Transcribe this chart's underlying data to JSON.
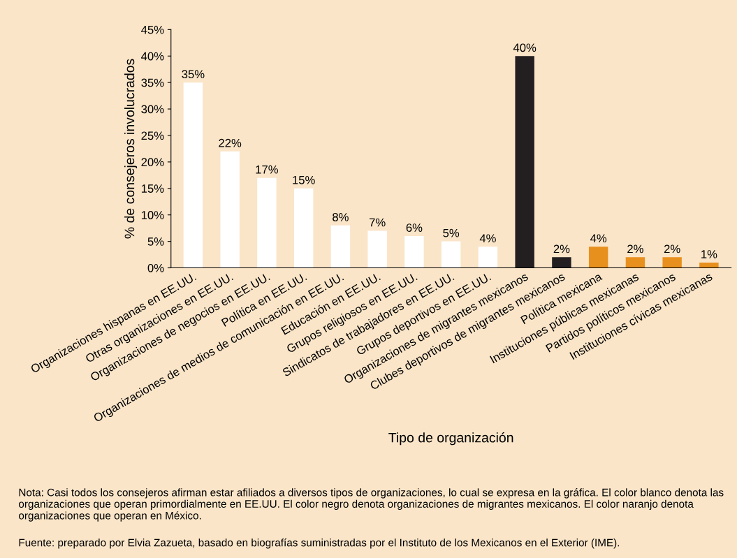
{
  "chart_data": {
    "type": "bar",
    "xlabel": "Tipo de organización",
    "ylabel": "% de consejeros involucrados",
    "categories": [
      "Organizaciones hispanas en EE.UU.",
      "Otras organizaciones en EE.UU.",
      "Organizaciones de negocios en EE.UU.",
      "Política en EE.UU.",
      "Organizaciones de medios de comunicación en EE.UU.",
      "Educación en EE.UU.",
      "Grupos religiosos en EE.UU.",
      "Sindicatos de trabajadores en EE.UU.",
      "Grupos deportivos en EE.UU.",
      "Organizaciones de migrantes mexicanos",
      "Clubes deportivos de migrantes mexicanos",
      "Política mexicana",
      "Instituciones públicas mexicanas",
      "Partidos políticos mexicanos",
      "Instituciones cívicas mexicanas"
    ],
    "values": [
      35,
      22,
      17,
      15,
      8,
      7,
      6,
      5,
      4,
      40,
      2,
      4,
      2,
      2,
      1
    ],
    "colors": [
      "#ffffff",
      "#ffffff",
      "#ffffff",
      "#ffffff",
      "#ffffff",
      "#ffffff",
      "#ffffff",
      "#ffffff",
      "#ffffff",
      "#231f20",
      "#231f20",
      "#e8901e",
      "#e8901e",
      "#e8901e",
      "#e8901e"
    ],
    "value_labels": [
      "35%",
      "22%",
      "17%",
      "15%",
      "8%",
      "7%",
      "6%",
      "5%",
      "4%",
      "40%",
      "2%",
      "4%",
      "2%",
      "2%",
      "1%"
    ],
    "ylim": [
      0,
      45
    ],
    "yticks": [
      {
        "value": 0,
        "label": "0%"
      },
      {
        "value": 5,
        "label": "5%"
      },
      {
        "value": 10,
        "label": "10%"
      },
      {
        "value": 15,
        "label": "15%"
      },
      {
        "value": 20,
        "label": "20%"
      },
      {
        "value": 25,
        "label": "25%"
      },
      {
        "value": 30,
        "label": "30%"
      },
      {
        "value": 35,
        "label": "35%"
      },
      {
        "value": 40,
        "label": "40%"
      },
      {
        "value": 45,
        "label": "45%"
      }
    ],
    "grid": false,
    "legend": false,
    "annotations": [
      "Nota: Casi todos los consejeros afirman estar afiliados a diversos tipos de organizaciones, lo cual se expresa en la gráfica. El color blanco denota las organizaciones que operan primordialmente en EE.UU. El color negro denota organizaciones de migrantes mexicanos. El color naranjo denota organizaciones que operan en México.",
      "Fuente: preparado por Elvia Zazueta, basado en biografías suministradas por el Instituto de los Mexicanos en el Exterior (IME)."
    ]
  }
}
